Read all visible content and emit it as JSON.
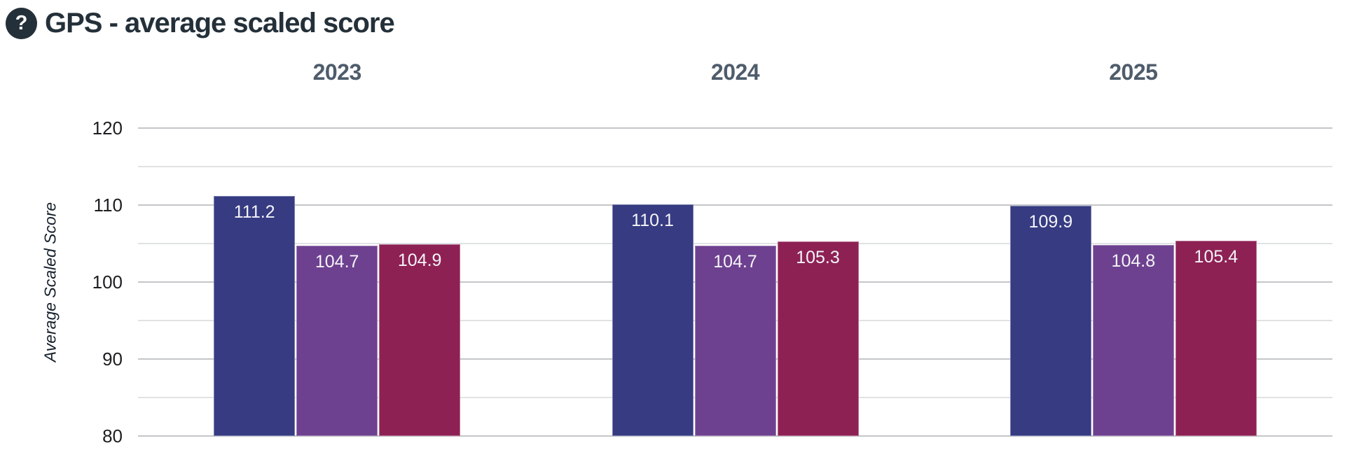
{
  "header": {
    "title": "GPS - average scaled score",
    "help_glyph": "?"
  },
  "chart_data": {
    "type": "bar",
    "title": "GPS - average scaled score",
    "facets": [
      "2023",
      "2024",
      "2025"
    ],
    "series": [
      {
        "name": "navy-series",
        "color": "#363b82",
        "values": [
          111.2,
          110.1,
          109.9
        ]
      },
      {
        "name": "purple-series",
        "color": "#6e4190",
        "values": [
          104.7,
          104.7,
          104.8
        ]
      },
      {
        "name": "crimson-series",
        "color": "#8e2154",
        "values": [
          104.9,
          105.3,
          105.4
        ]
      }
    ],
    "ylabel": "Average Scaled Score",
    "ylim": [
      80,
      120
    ],
    "y_ticks": [
      120,
      110,
      100,
      90,
      80
    ],
    "y_major_step": 10,
    "y_minor_step": 5,
    "grid": true,
    "legend": "none",
    "bar_value_labels": true,
    "style": {
      "title_color": "#243039",
      "facet_header_color": "#4e5c6b",
      "major_grid_color": "#c3c6c9",
      "minor_grid_color": "#e0e2e4",
      "tick_label_color": "#1d1e20",
      "bar_label_color": "#f4f4f8",
      "background": "#ffffff"
    }
  }
}
